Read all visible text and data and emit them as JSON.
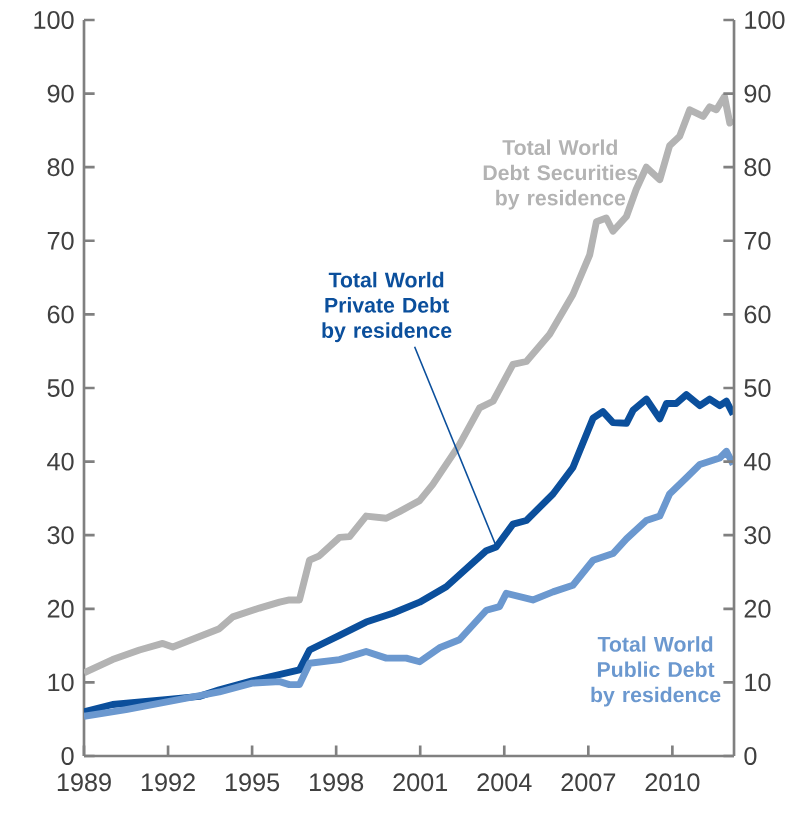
{
  "chart_data": {
    "type": "line",
    "series": [
      {
        "name": "Total World Debt Securities by residence",
        "color": "#b3b3b3",
        "x": [
          1989.0,
          1990.02,
          1990.98,
          1991.81,
          1992.17,
          1993.83,
          1994.31,
          1995.26,
          1995.98,
          1996.33,
          1996.69,
          1997.05,
          1997.4,
          1998.12,
          1998.48,
          1999.07,
          1999.79,
          2000.26,
          2000.98,
          2001.45,
          2002.4,
          2003.12,
          2003.6,
          2004.31,
          2004.79,
          2005.62,
          2006.45,
          2007.05,
          2007.29,
          2007.64,
          2007.88,
          2008.36,
          2008.71,
          2009.07,
          2009.55,
          2009.9,
          2010.26,
          2010.62,
          2011.1,
          2011.33,
          2011.57,
          2011.86,
          2012.05,
          2012.17
        ],
        "values": [
          11.3,
          13.1,
          14.4,
          15.3,
          14.8,
          17.3,
          18.9,
          20.1,
          20.9,
          21.2,
          21.2,
          26.6,
          27.2,
          29.7,
          29.8,
          32.6,
          32.3,
          33.2,
          34.7,
          36.9,
          42.3,
          47.3,
          48.2,
          53.2,
          53.6,
          57.3,
          62.7,
          68.1,
          72.6,
          73.1,
          71.3,
          73.3,
          77,
          80,
          78.3,
          82.9,
          84.2,
          87.8,
          86.9,
          88.2,
          87.8,
          89.6,
          86,
          86.5
        ]
      },
      {
        "name": "Total World Private Debt by residence",
        "color": "#0b4f9c",
        "x": [
          1989.0,
          1990.02,
          1992.0,
          1993.12,
          1993.83,
          1995.0,
          1996.69,
          1997.05,
          1998.12,
          1999.07,
          2000.02,
          2000.98,
          2001.93,
          2003.36,
          2003.71,
          2004.31,
          2004.79,
          2005.74,
          2006.45,
          2007.17,
          2007.52,
          2007.88,
          2008.36,
          2008.6,
          2009.07,
          2009.55,
          2009.79,
          2010.14,
          2010.5,
          2010.98,
          2011.33,
          2011.69,
          2011.93,
          2012.17
        ],
        "values": [
          6.0,
          7.0,
          7.7,
          8.1,
          9.0,
          10.2,
          11.7,
          14.4,
          16.4,
          18.2,
          19.4,
          20.9,
          23.0,
          27.9,
          28.4,
          31.5,
          32.0,
          35.6,
          39.2,
          45.9,
          46.8,
          45.3,
          45.2,
          47.0,
          48.5,
          45.8,
          47.9,
          47.9,
          49.1,
          47.6,
          48.5,
          47.6,
          48.2,
          46.4
        ]
      },
      {
        "name": "Total World Public Debt by residence",
        "color": "#6b98cf",
        "x": [
          1989.0,
          1990.5,
          1992.0,
          1993.83,
          1995.0,
          1995.98,
          1996.33,
          1996.69,
          1997.05,
          1998.12,
          1999.07,
          1999.79,
          2000.5,
          2000.98,
          2001.69,
          2002.4,
          2003.36,
          2003.83,
          2004.07,
          2005.02,
          2005.74,
          2006.45,
          2007.17,
          2007.88,
          2008.36,
          2009.07,
          2009.55,
          2009.9,
          2010.5,
          2010.98,
          2011.69,
          2011.93,
          2012.17
        ],
        "values": [
          5.4,
          6.3,
          7.4,
          8.7,
          9.9,
          10.1,
          9.7,
          9.7,
          12.6,
          13.1,
          14.2,
          13.3,
          13.3,
          12.8,
          14.7,
          15.8,
          19.8,
          20.3,
          22.1,
          21.2,
          22.3,
          23.2,
          26.6,
          27.5,
          29.5,
          32.0,
          32.6,
          35.6,
          37.8,
          39.6,
          40.5,
          41.4,
          39.6
        ]
      }
    ],
    "xlim": [
      1989,
      2012.2
    ],
    "xticks": [
      1989,
      1992,
      1995,
      1998,
      2001,
      2004,
      2007,
      2010
    ],
    "ylim": [
      0,
      100
    ],
    "yticks": [
      0,
      10,
      20,
      30,
      40,
      50,
      60,
      70,
      80,
      90,
      100
    ],
    "y2lim": [
      0,
      100
    ],
    "y2ticks": [
      0,
      10,
      20,
      30,
      40,
      50,
      60,
      70,
      80,
      90,
      100
    ],
    "grid": false,
    "legend": false,
    "marker": "none",
    "line_style": "solid"
  }
}
